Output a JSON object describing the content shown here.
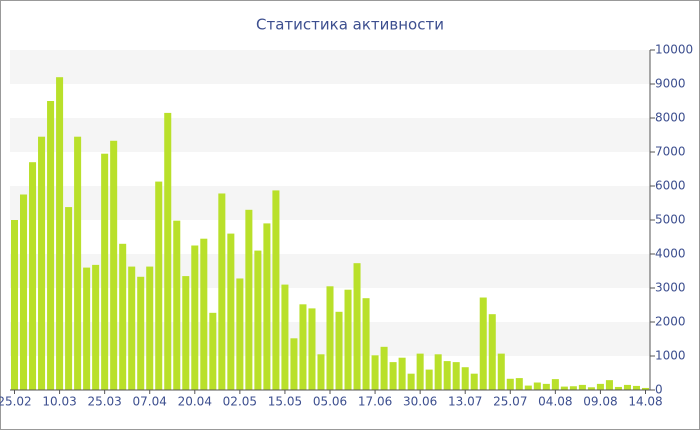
{
  "chart_data": {
    "type": "bar",
    "title": "Статистика активности",
    "categories": [
      "25.02",
      null,
      null,
      null,
      null,
      "10.03",
      null,
      null,
      null,
      null,
      "25.03",
      null,
      null,
      null,
      null,
      "07.04",
      null,
      null,
      null,
      null,
      "20.04",
      null,
      null,
      null,
      null,
      "02.05",
      null,
      null,
      null,
      null,
      "15.05",
      null,
      null,
      null,
      null,
      "05.06",
      null,
      null,
      null,
      null,
      "17.06",
      null,
      null,
      null,
      null,
      "30.06",
      null,
      null,
      null,
      null,
      "13.07",
      null,
      null,
      null,
      null,
      "25.07",
      null,
      null,
      null,
      null,
      "04.08",
      null,
      null,
      null,
      null,
      "09.08",
      null,
      null,
      null,
      null,
      "14.08"
    ],
    "values": [
      5000,
      5750,
      6700,
      7450,
      8500,
      9200,
      5380,
      7450,
      3600,
      3680,
      6950,
      7330,
      4300,
      3630,
      3330,
      3630,
      6130,
      8150,
      4980,
      3350,
      4250,
      4450,
      2270,
      5780,
      4600,
      3280,
      5300,
      4100,
      4900,
      5870,
      3100,
      1520,
      2520,
      2400,
      1050,
      3050,
      2300,
      2950,
      3730,
      2700,
      1020,
      1270,
      820,
      950,
      480,
      1070,
      600,
      1050,
      850,
      820,
      670,
      480,
      2720,
      2230,
      1070,
      330,
      350,
      130,
      220,
      180,
      320,
      100,
      110,
      150,
      80,
      180,
      290,
      90,
      150,
      120,
      60
    ],
    "color": "#b9e02a",
    "ylim": [
      0,
      10000
    ],
    "yticks": [
      0,
      1000,
      2000,
      3000,
      4000,
      5000,
      6000,
      7000,
      8000,
      9000,
      10000
    ],
    "grid": true
  }
}
